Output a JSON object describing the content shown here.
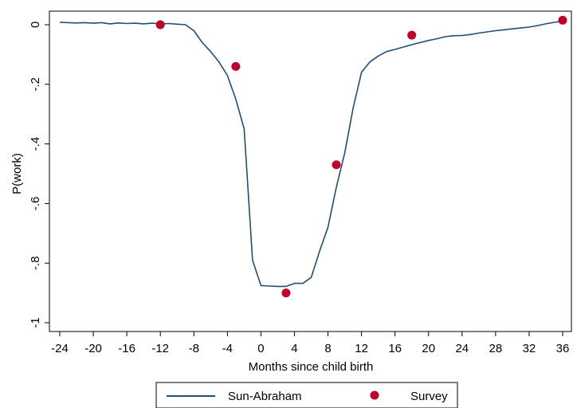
{
  "chart_data": {
    "type": "line",
    "title": "",
    "xlabel": "Months since child birth",
    "ylabel": "P(work)",
    "xlim": [
      -24,
      36
    ],
    "ylim": [
      -1,
      0
    ],
    "xticks": [
      -24,
      -20,
      -16,
      -12,
      -8,
      -4,
      0,
      4,
      8,
      12,
      16,
      20,
      24,
      28,
      32,
      36
    ],
    "xtick_labels": [
      "-24",
      "-20",
      "-16",
      "-12",
      "-8",
      "-4",
      "0",
      "4",
      "8",
      "12",
      "16",
      "20",
      "24",
      "28",
      "32",
      "36"
    ],
    "yticks": [
      0,
      -0.2,
      -0.4,
      -0.6,
      -0.8,
      -1
    ],
    "ytick_labels": [
      "0",
      "-.2",
      "-.4",
      "-.6",
      "-.8",
      "-1"
    ],
    "grid": false,
    "legend_position": "bottom",
    "series": [
      {
        "name": "Sun-Abraham",
        "type": "line",
        "color": "#1f4e79",
        "x": [
          -24,
          -23,
          -22,
          -21,
          -20,
          -19,
          -18,
          -17,
          -16,
          -15,
          -14,
          -13,
          -12,
          -11,
          -10,
          -9,
          -8,
          -7,
          -6,
          -5,
          -4,
          -3,
          -2,
          -1,
          0,
          1,
          2,
          3,
          4,
          5,
          6,
          7,
          8,
          9,
          10,
          11,
          12,
          13,
          14,
          15,
          16,
          17,
          18,
          19,
          20,
          21,
          22,
          23,
          24,
          25,
          26,
          27,
          28,
          29,
          30,
          31,
          32,
          33,
          34,
          35,
          36
        ],
        "y": [
          0.008,
          0.007,
          0.006,
          0.007,
          0.005,
          0.007,
          0.003,
          0.006,
          0.004,
          0.005,
          0.003,
          0.005,
          0.003,
          0.004,
          0.002,
          0.0,
          -0.02,
          -0.06,
          -0.09,
          -0.125,
          -0.17,
          -0.25,
          -0.35,
          -0.79,
          -0.875,
          -0.877,
          -0.878,
          -0.878,
          -0.868,
          -0.868,
          -0.848,
          -0.76,
          -0.68,
          -0.545,
          -0.43,
          -0.28,
          -0.16,
          -0.125,
          -0.105,
          -0.09,
          -0.083,
          -0.075,
          -0.067,
          -0.06,
          -0.053,
          -0.047,
          -0.04,
          -0.037,
          -0.036,
          -0.033,
          -0.028,
          -0.024,
          -0.02,
          -0.017,
          -0.014,
          -0.011,
          -0.008,
          -0.003,
          0.003,
          0.008,
          0.012
        ]
      },
      {
        "name": "Survey",
        "type": "scatter",
        "color": "#c0002a",
        "x": [
          -12,
          -3,
          3,
          9,
          18,
          36
        ],
        "y": [
          0.0,
          -0.14,
          -0.9,
          -0.47,
          -0.035,
          0.015
        ]
      }
    ]
  }
}
